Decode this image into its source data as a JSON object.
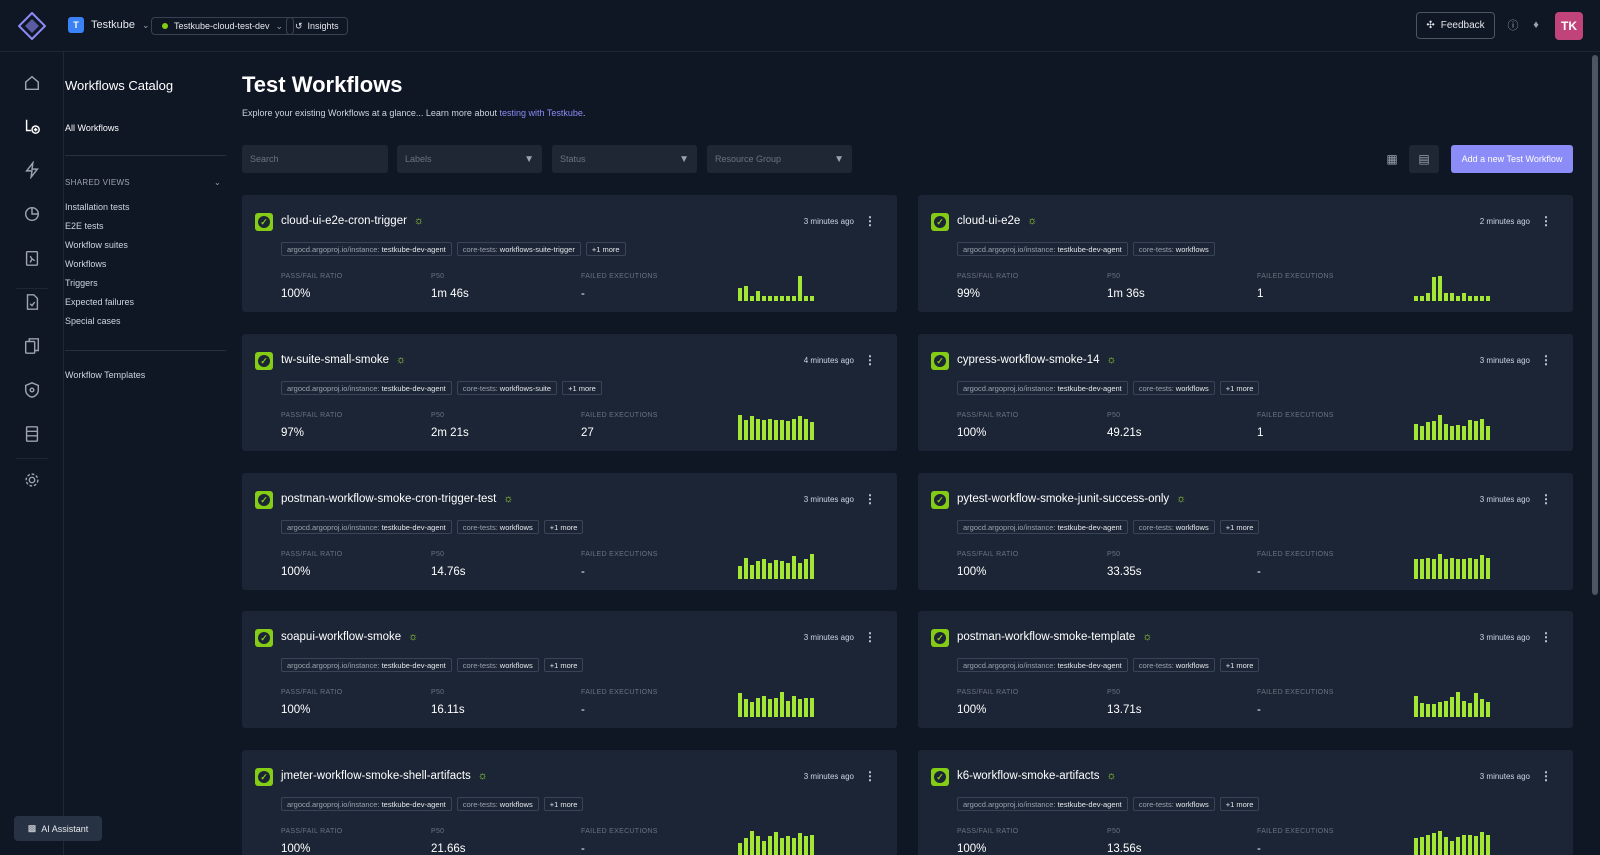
{
  "topbar": {
    "org": {
      "initial": "T",
      "name": "Testkube"
    },
    "environment": "Testkube-cloud-test-dev",
    "insights": "Insights",
    "feedback": "Feedback",
    "user_initials": "TK"
  },
  "sidenav": {
    "title": "Workflows Catalog",
    "all_workflows": "All Workflows",
    "shared_views_label": "SHARED VIEWS",
    "shared_views": [
      "Installation tests",
      "E2E tests",
      "Workflow suites",
      "Workflows",
      "Triggers",
      "Expected failures",
      "Special cases"
    ],
    "templates": "Workflow Templates"
  },
  "ai_assistant": "AI Assistant",
  "page": {
    "title": "Test Workflows",
    "subtitle": "Explore your existing Workflows at a glance... Learn more about",
    "subtitle_link": "testing with Testkube",
    "subtitle_end": "."
  },
  "filters": {
    "search_placeholder": "Search",
    "labels": "Labels",
    "status": "Status",
    "resource_group": "Resource Group"
  },
  "add_button": "Add a new Test Workflow",
  "metric_labels": {
    "ratio": "PASS/FAIL RATIO",
    "p50": "P50",
    "failed": "FAILED EXECUTIONS"
  },
  "colors": {
    "accent": "#8b8cf8",
    "success": "#84cc16",
    "bar": "#a3e635",
    "card": "#1c2535"
  },
  "workflows": [
    {
      "name": "cloud-ui-e2e-cron-trigger",
      "time": "3 minutes ago",
      "labels": [
        [
          "argocd.argoproj.io/instance:",
          "testkube-dev-agent"
        ],
        [
          "core-tests:",
          "workflows-suite-trigger"
        ]
      ],
      "more": "+1 more",
      "ratio": "100%",
      "p50": "1m 46s",
      "failed": "-",
      "bars": [
        0.5,
        0.6,
        0.2,
        0.4,
        0.2,
        0.2,
        0.2,
        0.2,
        0.2,
        0.2,
        1.0,
        0.2,
        0.2
      ]
    },
    {
      "name": "cloud-ui-e2e",
      "time": "2 minutes ago",
      "labels": [
        [
          "argocd.argoproj.io/instance:",
          "testkube-dev-agent"
        ],
        [
          "core-tests:",
          "workflows"
        ]
      ],
      "more": "",
      "ratio": "99%",
      "p50": "1m 36s",
      "failed": "1",
      "bars": [
        0.2,
        0.2,
        0.3,
        0.95,
        1.0,
        0.3,
        0.3,
        0.2,
        0.3,
        0.2,
        0.2,
        0.2,
        0.2
      ]
    },
    {
      "name": "tw-suite-small-smoke",
      "time": "4 minutes ago",
      "labels": [
        [
          "argocd.argoproj.io/instance:",
          "testkube-dev-agent"
        ],
        [
          "core-tests:",
          "workflows-suite"
        ]
      ],
      "more": "+1 more",
      "ratio": "97%",
      "p50": "2m 21s",
      "failed": "27",
      "bars": [
        1.0,
        0.8,
        0.95,
        0.85,
        0.8,
        0.85,
        0.8,
        0.8,
        0.75,
        0.85,
        0.95,
        0.85,
        0.7
      ]
    },
    {
      "name": "cypress-workflow-smoke-14",
      "time": "3 minutes ago",
      "labels": [
        [
          "argocd.argoproj.io/instance:",
          "testkube-dev-agent"
        ],
        [
          "core-tests:",
          "workflows"
        ]
      ],
      "more": "+1 more",
      "ratio": "100%",
      "p50": "49.21s",
      "failed": "1",
      "bars": [
        0.65,
        0.55,
        0.7,
        0.75,
        1.0,
        0.65,
        0.55,
        0.6,
        0.55,
        0.8,
        0.75,
        0.85,
        0.55
      ]
    },
    {
      "name": "postman-workflow-smoke-cron-trigger-test",
      "time": "3 minutes ago",
      "labels": [
        [
          "argocd.argoproj.io/instance:",
          "testkube-dev-agent"
        ],
        [
          "core-tests:",
          "workflows"
        ]
      ],
      "more": "+1 more",
      "ratio": "100%",
      "p50": "14.76s",
      "failed": "-",
      "bars": [
        0.5,
        0.85,
        0.55,
        0.7,
        0.8,
        0.65,
        0.75,
        0.7,
        0.65,
        0.9,
        0.65,
        0.8,
        1.0
      ]
    },
    {
      "name": "pytest-workflow-smoke-junit-success-only",
      "time": "3 minutes ago",
      "labels": [
        [
          "argocd.argoproj.io/instance:",
          "testkube-dev-agent"
        ],
        [
          "core-tests:",
          "workflows"
        ]
      ],
      "more": "+1 more",
      "ratio": "100%",
      "p50": "33.35s",
      "failed": "-",
      "bars": [
        0.8,
        0.8,
        0.85,
        0.8,
        1.0,
        0.8,
        0.85,
        0.8,
        0.8,
        0.85,
        0.8,
        0.95,
        0.85
      ]
    },
    {
      "name": "soapui-workflow-smoke",
      "time": "3 minutes ago",
      "labels": [
        [
          "argocd.argoproj.io/instance:",
          "testkube-dev-agent"
        ],
        [
          "core-tests:",
          "workflows"
        ]
      ],
      "more": "+1 more",
      "ratio": "100%",
      "p50": "16.11s",
      "failed": "-",
      "bars": [
        0.95,
        0.7,
        0.6,
        0.75,
        0.85,
        0.7,
        0.75,
        1.0,
        0.65,
        0.85,
        0.7,
        0.75,
        0.75
      ]
    },
    {
      "name": "postman-workflow-smoke-template",
      "time": "3 minutes ago",
      "labels": [
        [
          "argocd.argoproj.io/instance:",
          "testkube-dev-agent"
        ],
        [
          "core-tests:",
          "workflows"
        ]
      ],
      "more": "+1 more",
      "ratio": "100%",
      "p50": "13.71s",
      "failed": "-",
      "bars": [
        0.85,
        0.55,
        0.5,
        0.5,
        0.6,
        0.65,
        0.8,
        1.0,
        0.65,
        0.55,
        0.95,
        0.7,
        0.6
      ]
    },
    {
      "name": "jmeter-workflow-smoke-shell-artifacts",
      "time": "3 minutes ago",
      "labels": [
        [
          "argocd.argoproj.io/instance:",
          "testkube-dev-agent"
        ],
        [
          "core-tests:",
          "workflows"
        ]
      ],
      "more": "+1 more",
      "ratio": "100%",
      "p50": "21.66s",
      "failed": "-",
      "bars": [
        0.5,
        0.7,
        1.0,
        0.8,
        0.6,
        0.8,
        0.95,
        0.7,
        0.8,
        0.7,
        0.9,
        0.8,
        0.85
      ]
    },
    {
      "name": "k6-workflow-smoke-artifacts",
      "time": "3 minutes ago",
      "labels": [
        [
          "argocd.argoproj.io/instance:",
          "testkube-dev-agent"
        ],
        [
          "core-tests:",
          "workflows"
        ]
      ],
      "more": "+1 more",
      "ratio": "100%",
      "p50": "13.56s",
      "failed": "-",
      "bars": [
        0.7,
        0.75,
        0.85,
        0.9,
        1.0,
        0.75,
        0.6,
        0.75,
        0.85,
        0.85,
        0.8,
        0.95,
        0.85
      ]
    }
  ]
}
